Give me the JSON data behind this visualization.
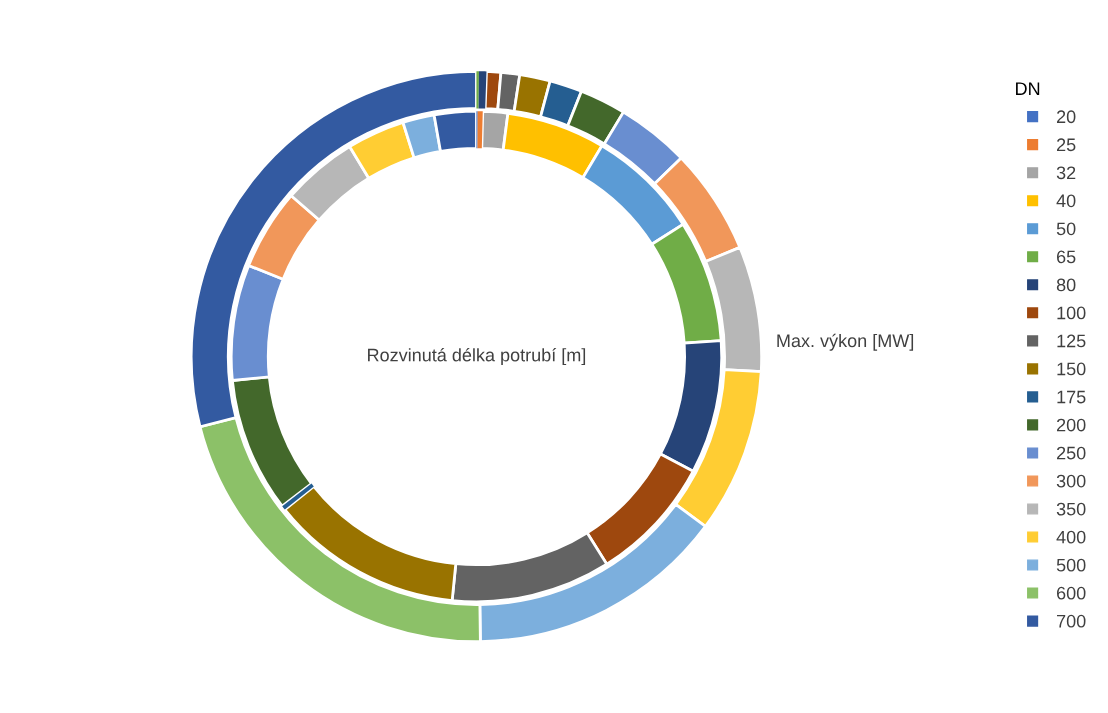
{
  "chart_data": {
    "type": "donut",
    "legend_title": "DN",
    "legend": "right",
    "categories": [
      "20",
      "25",
      "32",
      "40",
      "50",
      "65",
      "80",
      "100",
      "125",
      "150",
      "175",
      "200",
      "250",
      "300",
      "350",
      "400",
      "500",
      "600",
      "700"
    ],
    "colors": [
      "#4472c4",
      "#ed7d31",
      "#a5a5a5",
      "#ffc000",
      "#5b9bd5",
      "#70ad47",
      "#264478",
      "#9e480e",
      "#636363",
      "#997300",
      "#255e91",
      "#43682b",
      "#698ed0",
      "#f1975a",
      "#b7b7b7",
      "#ffcd33",
      "#7cafdd",
      "#8cc168",
      "#335aa1"
    ],
    "series": [
      {
        "name": "Rozvinutá délka potrubí [m]",
        "values": [
          0.08,
          0.33,
          1.64,
          6.5,
          7.39,
          8.03,
          8.78,
          8.33,
          10.5,
          12.69,
          0.28,
          8.89,
          7.61,
          5.33,
          4.97,
          3.81,
          2.08,
          0,
          2.76
        ]
      },
      {
        "name": "Max. výkon [MW]",
        "values": [
          0,
          0,
          0,
          0,
          0,
          0.14,
          0.42,
          0.81,
          1.06,
          1.73,
          1.84,
          2.62,
          4.13,
          6.0,
          7.09,
          9.32,
          14.62,
          21.26,
          28.96
        ]
      }
    ]
  }
}
